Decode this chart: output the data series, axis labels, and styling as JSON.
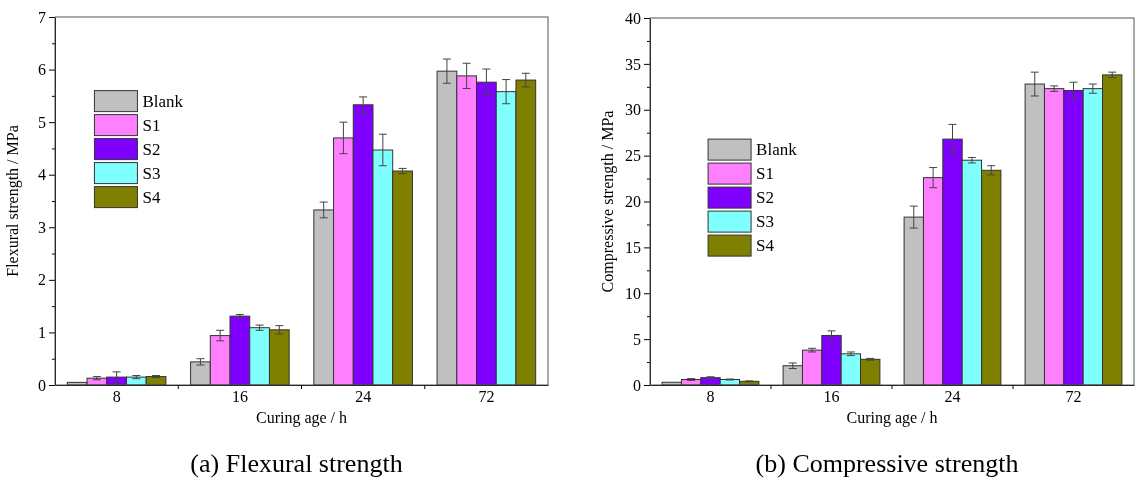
{
  "chart_data": [
    {
      "type": "bar",
      "title": "(a) Flexural strength",
      "xlabel": "Curing age / h",
      "ylabel": "Flexural strength / MPa",
      "categories": [
        "8",
        "16",
        "24",
        "72"
      ],
      "series": [
        {
          "name": "Blank",
          "color": "#c0c0c0",
          "values": [
            0.05,
            0.44,
            3.33,
            5.97
          ],
          "errors": [
            null,
            0.06,
            0.15,
            0.23
          ]
        },
        {
          "name": "S1",
          "color": "#ff80ff",
          "values": [
            0.13,
            0.94,
            4.7,
            5.88
          ],
          "errors": [
            0.03,
            0.1,
            0.3,
            0.24
          ]
        },
        {
          "name": "S2",
          "color": "#8000ff",
          "values": [
            0.15,
            1.31,
            5.33,
            5.76
          ],
          "errors": [
            0.1,
            0.03,
            0.15,
            0.25
          ]
        },
        {
          "name": "S3",
          "color": "#80ffff",
          "values": [
            0.15,
            1.09,
            4.47,
            5.58
          ],
          "errors": [
            0.03,
            0.05,
            0.3,
            0.23
          ]
        },
        {
          "name": "S4",
          "color": "#808000",
          "values": [
            0.16,
            1.05,
            4.07,
            5.8
          ],
          "errors": [
            0.02,
            0.08,
            0.05,
            0.13
          ]
        }
      ],
      "ylim": [
        0,
        7
      ],
      "yticks": [
        0,
        {
          "value": 0.5,
          "label": null
        },
        1,
        {
          "value": 1.5,
          "label": null
        },
        2,
        {
          "value": 2.5,
          "label": null
        },
        3,
        {
          "value": 3.5,
          "label": null
        },
        4,
        {
          "value": 4.5,
          "label": null
        },
        5,
        {
          "value": 5.5,
          "label": null
        },
        6,
        {
          "value": 6.5,
          "label": null
        },
        7
      ],
      "legend": "top left"
    },
    {
      "type": "bar",
      "title": "(b) Compressive strength",
      "xlabel": "Curing age / h",
      "ylabel": "Compressive strength / MPa",
      "categories": [
        "8",
        "16",
        "24",
        "72"
      ],
      "series": [
        {
          "name": "Blank",
          "color": "#c0c0c0",
          "values": [
            0.3,
            2.1,
            18.3,
            32.8
          ],
          "errors": [
            null,
            0.3,
            1.2,
            1.3
          ]
        },
        {
          "name": "S1",
          "color": "#ff80ff",
          "values": [
            0.6,
            3.8,
            22.6,
            32.3
          ],
          "errors": [
            0.1,
            0.2,
            1.1,
            0.3
          ]
        },
        {
          "name": "S2",
          "color": "#8000ff",
          "values": [
            0.8,
            5.4,
            26.8,
            32.1
          ],
          "errors": [
            0.1,
            0.5,
            1.6,
            0.9
          ]
        },
        {
          "name": "S3",
          "color": "#80ffff",
          "values": [
            0.6,
            3.4,
            24.5,
            32.3
          ],
          "errors": [
            0.05,
            0.2,
            0.3,
            0.5
          ]
        },
        {
          "name": "S4",
          "color": "#808000",
          "values": [
            0.4,
            2.8,
            23.4,
            33.8
          ],
          "errors": [
            0.05,
            0.1,
            0.5,
            0.3
          ]
        }
      ],
      "ylim": [
        0,
        40
      ],
      "yticks": [
        0,
        {
          "value": 2.5,
          "label": null
        },
        5,
        {
          "value": 7.5,
          "label": null
        },
        10,
        {
          "value": 12.5,
          "label": null
        },
        15,
        {
          "value": 17.5,
          "label": null
        },
        20,
        {
          "value": 22.5,
          "label": null
        },
        25,
        {
          "value": 27.5,
          "label": null
        },
        30,
        {
          "value": 32.5,
          "label": null
        },
        35,
        {
          "value": 37.5,
          "label": null
        },
        40
      ],
      "legend": "left"
    }
  ]
}
